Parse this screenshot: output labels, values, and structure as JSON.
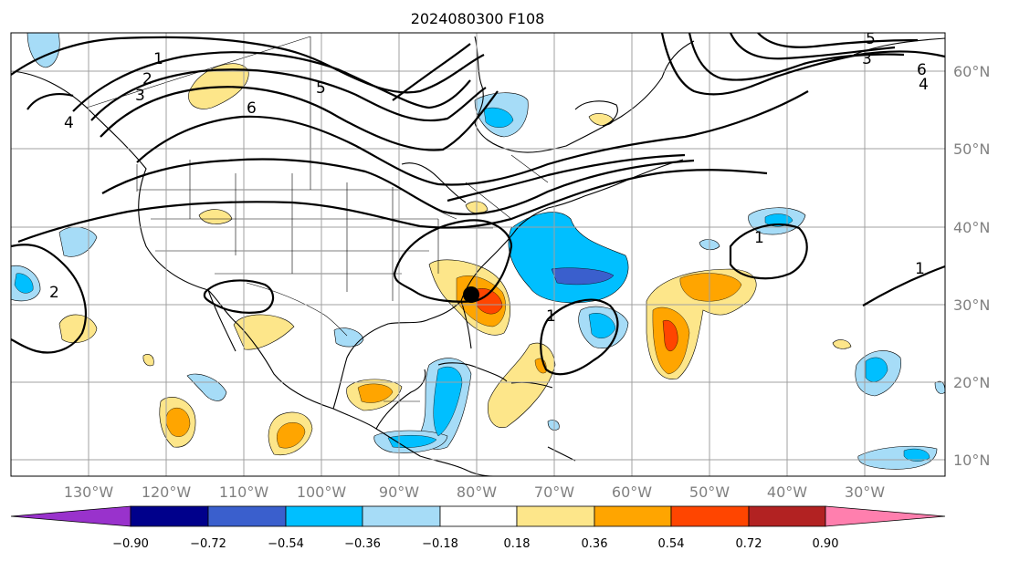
{
  "title": "2024080300 F108",
  "longitude_labels": [
    "130°W",
    "120°W",
    "110°W",
    "100°W",
    "90°W",
    "80°W",
    "70°W",
    "60°W",
    "50°W",
    "40°W",
    "30°W"
  ],
  "latitude_labels": [
    "60°N",
    "50°N",
    "40°N",
    "30°N",
    "20°N",
    "10°N"
  ],
  "colorbar": {
    "colors": [
      "#9932cc",
      "#00008b",
      "#3a5fcd",
      "#00bfff",
      "#a6dcf7",
      "#ffffff",
      "#fde68a",
      "#ffa500",
      "#ff4500",
      "#b22222",
      "#ff7fae"
    ],
    "ticks": [
      "−0.90",
      "−0.72",
      "−0.54",
      "−0.36",
      "−0.18",
      "0.18",
      "0.36",
      "0.54",
      "0.72",
      "0.90"
    ]
  },
  "contour_labels": [
    "1",
    "2",
    "3",
    "4",
    "5",
    "6"
  ],
  "marker": {
    "name": "storm-center",
    "lon": "80°W",
    "lat": "32°N"
  }
}
